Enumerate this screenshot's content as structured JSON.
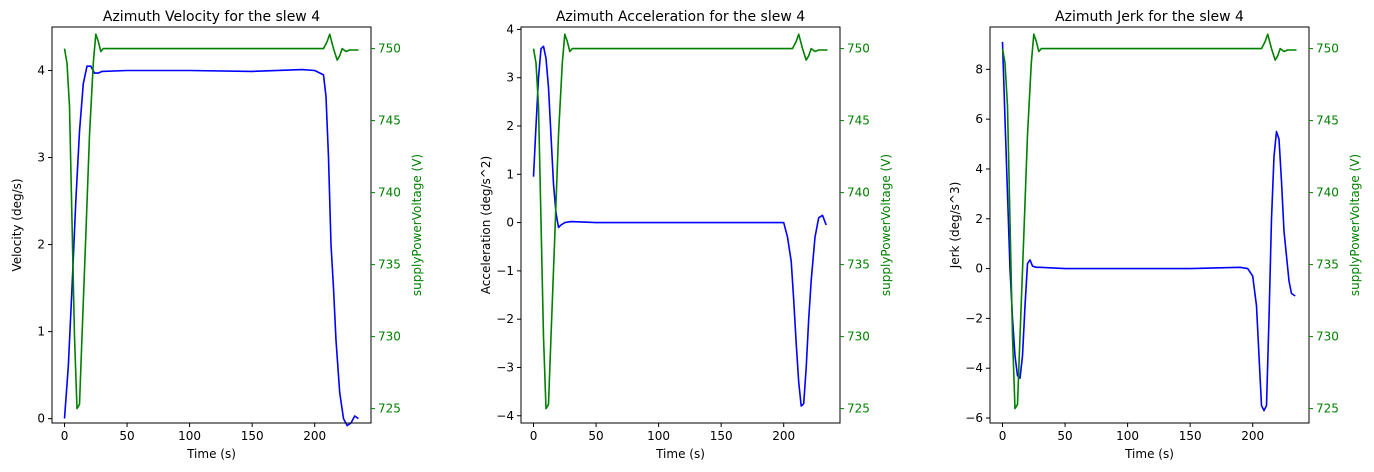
{
  "chart_data": [
    {
      "type": "line",
      "title": "Azimuth Velocity for the slew 4",
      "xlabel": "Time (s)",
      "ylabel": "Velocity (deg/s)",
      "y2label": "supplyPowerVoltage (V)",
      "xlim": [
        -10,
        245
      ],
      "ylim": [
        -0.05,
        4.5
      ],
      "y2lim": [
        724,
        751.5
      ],
      "x_ticks": [
        0,
        50,
        100,
        150,
        200
      ],
      "y_ticks": [
        0,
        1,
        2,
        3,
        4
      ],
      "y2_ticks": [
        725,
        730,
        735,
        740,
        745,
        750
      ],
      "colors": {
        "primary": "#0000ff",
        "secondary": "#008000"
      },
      "series": [
        {
          "axis": "left",
          "x": [
            0,
            3,
            6,
            9,
            12,
            15,
            18,
            21,
            24,
            27,
            30,
            50,
            100,
            150,
            190,
            200,
            207,
            209,
            211,
            213,
            215,
            217,
            220,
            223,
            226,
            229,
            232,
            235
          ],
          "values": [
            0.0,
            0.6,
            1.5,
            2.5,
            3.3,
            3.85,
            4.05,
            4.05,
            3.97,
            3.97,
            3.99,
            4.0,
            4.0,
            3.99,
            4.01,
            4.0,
            3.95,
            3.7,
            3.0,
            2.0,
            1.5,
            0.9,
            0.3,
            0.0,
            -0.08,
            -0.05,
            0.03,
            0.0
          ]
        },
        {
          "axis": "right",
          "x": [
            0,
            2,
            4,
            6,
            8,
            10,
            12,
            14,
            17,
            20,
            23,
            25,
            27,
            29,
            31,
            50,
            100,
            150,
            200,
            207,
            210,
            212,
            215,
            218,
            220,
            222,
            225,
            228,
            235
          ],
          "values": [
            750.0,
            749.0,
            746.0,
            738.0,
            730.0,
            725.0,
            725.3,
            730.0,
            737.0,
            744.0,
            749.0,
            751.0,
            750.5,
            749.8,
            750.0,
            750.0,
            750.0,
            750.0,
            750.0,
            750.0,
            750.5,
            751.0,
            750.0,
            749.2,
            749.5,
            750.0,
            749.8,
            749.9,
            749.9
          ]
        }
      ]
    },
    {
      "type": "line",
      "title": "Azimuth Acceleration for the slew 4",
      "xlabel": "Time (s)",
      "ylabel": "Acceleration (deg/s^2)",
      "y2label": "supplyPowerVoltage (V)",
      "xlim": [
        -10,
        245
      ],
      "ylim": [
        -4.15,
        4.05
      ],
      "y2lim": [
        724,
        751.5
      ],
      "x_ticks": [
        0,
        50,
        100,
        150,
        200
      ],
      "y_ticks": [
        -4,
        -3,
        -2,
        -1,
        0,
        1,
        2,
        3,
        4
      ],
      "y2_ticks": [
        725,
        730,
        735,
        740,
        745,
        750
      ],
      "colors": {
        "primary": "#0000ff",
        "secondary": "#008000"
      },
      "series": [
        {
          "axis": "left",
          "x": [
            0,
            2,
            4,
            6,
            8,
            10,
            12,
            14,
            16,
            18,
            20,
            22,
            25,
            30,
            50,
            100,
            150,
            200,
            203,
            206,
            208,
            210,
            212,
            214,
            216,
            218,
            220,
            222,
            225,
            228,
            231,
            234
          ],
          "values": [
            0.95,
            2.0,
            3.0,
            3.6,
            3.65,
            3.4,
            2.8,
            1.8,
            0.8,
            0.2,
            -0.1,
            -0.05,
            0.0,
            0.02,
            0.0,
            0.0,
            0.0,
            0.0,
            -0.3,
            -0.8,
            -1.6,
            -2.5,
            -3.3,
            -3.8,
            -3.75,
            -3.0,
            -2.0,
            -1.2,
            -0.3,
            0.1,
            0.15,
            -0.05
          ]
        },
        {
          "axis": "right",
          "x": [
            0,
            2,
            4,
            6,
            8,
            10,
            12,
            14,
            17,
            20,
            23,
            25,
            27,
            29,
            31,
            50,
            100,
            150,
            200,
            207,
            210,
            212,
            215,
            218,
            220,
            222,
            225,
            228,
            235
          ],
          "values": [
            750.0,
            749.0,
            746.0,
            738.0,
            730.0,
            725.0,
            725.3,
            730.0,
            737.0,
            744.0,
            749.0,
            751.0,
            750.5,
            749.8,
            750.0,
            750.0,
            750.0,
            750.0,
            750.0,
            750.0,
            750.5,
            751.0,
            750.0,
            749.2,
            749.5,
            750.0,
            749.8,
            749.9,
            749.9
          ]
        }
      ]
    },
    {
      "type": "line",
      "title": "Azimuth Jerk for the slew 4",
      "xlabel": "Time (s)",
      "ylabel": "Jerk (deg/s^3)",
      "y2label": "supplyPowerVoltage (V)",
      "xlim": [
        -10,
        245
      ],
      "ylim": [
        -6.2,
        9.7
      ],
      "y2lim": [
        724,
        751.5
      ],
      "x_ticks": [
        0,
        50,
        100,
        150,
        200
      ],
      "y_ticks": [
        -6,
        -4,
        -2,
        0,
        2,
        4,
        6,
        8
      ],
      "y2_ticks": [
        725,
        730,
        735,
        740,
        745,
        750
      ],
      "colors": {
        "primary": "#0000ff",
        "secondary": "#008000"
      },
      "series": [
        {
          "axis": "left",
          "x": [
            0,
            2,
            4,
            6,
            8,
            10,
            12,
            14,
            16,
            18,
            20,
            22,
            24,
            27,
            30,
            50,
            100,
            150,
            190,
            196,
            200,
            203,
            205,
            207,
            209,
            211,
            213,
            215,
            217,
            219,
            221,
            223,
            225,
            227,
            229,
            231,
            234
          ],
          "values": [
            9.1,
            6.0,
            3.0,
            0.0,
            -2.0,
            -3.5,
            -4.3,
            -4.4,
            -3.5,
            -1.5,
            0.2,
            0.35,
            0.1,
            0.05,
            0.05,
            0.0,
            0.0,
            0.0,
            0.05,
            0.0,
            -0.3,
            -1.5,
            -3.5,
            -5.5,
            -5.7,
            -5.5,
            -2.0,
            2.0,
            4.5,
            5.5,
            5.2,
            3.5,
            1.5,
            0.5,
            -0.5,
            -1.0,
            -1.1
          ]
        },
        {
          "axis": "right",
          "x": [
            0,
            2,
            4,
            6,
            8,
            10,
            12,
            14,
            17,
            20,
            23,
            25,
            27,
            29,
            31,
            50,
            100,
            150,
            200,
            207,
            210,
            212,
            215,
            218,
            220,
            222,
            225,
            228,
            235
          ],
          "values": [
            750.0,
            749.0,
            746.0,
            738.0,
            730.0,
            725.0,
            725.3,
            730.0,
            737.0,
            744.0,
            749.0,
            751.0,
            750.5,
            749.8,
            750.0,
            750.0,
            750.0,
            750.0,
            750.0,
            750.0,
            750.5,
            751.0,
            750.0,
            749.2,
            749.5,
            750.0,
            749.8,
            749.9,
            749.9
          ]
        }
      ]
    }
  ]
}
